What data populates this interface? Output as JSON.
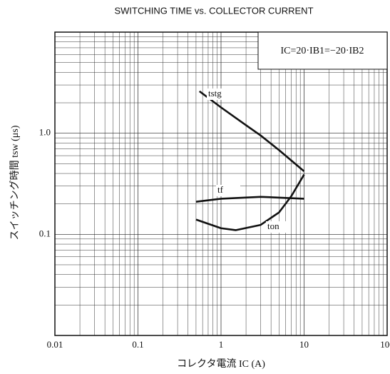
{
  "chart_data": {
    "type": "line",
    "title": "SWITCHING TIME vs. COLLECTOR CURRENT",
    "x_label": "コレクタ電流  IC (A)",
    "y_label": "スイッチング時間  tsw (μs)",
    "annotation": "IC=20·IB1=−20·IB2",
    "xlog": true,
    "ylog": true,
    "grid": true,
    "minor_grid": true,
    "xlim": [
      0.01,
      100
    ],
    "xticks": [
      0.01,
      0.1,
      1,
      10,
      100
    ],
    "ylim": [
      0.01,
      10
    ],
    "yticks": [
      0.1,
      {
        "value": 1,
        "label": "1.0"
      }
    ],
    "series": [
      {
        "name": "tstg",
        "color": "#111",
        "x": [
          0.55,
          1,
          2,
          3,
          5,
          10
        ],
        "values": [
          2.6,
          1.8,
          1.2,
          0.95,
          0.68,
          0.42
        ]
      },
      {
        "name": "tf",
        "color": "#111",
        "x": [
          0.5,
          1,
          3,
          10
        ],
        "values": [
          0.21,
          0.225,
          0.235,
          0.225
        ]
      },
      {
        "name": "ton",
        "color": "#111",
        "x": [
          0.5,
          1,
          1.5,
          3,
          5,
          7,
          10
        ],
        "values": [
          0.14,
          0.115,
          0.11,
          0.124,
          0.165,
          0.238,
          0.39
        ]
      }
    ]
  }
}
